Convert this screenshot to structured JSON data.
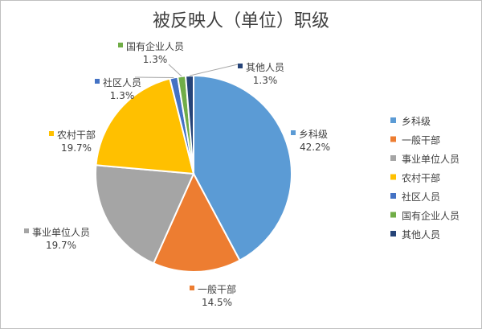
{
  "chart_data": {
    "type": "pie",
    "title": "被反映人（单位）职级",
    "slices": [
      {
        "label": "乡科级",
        "value": 42.2,
        "display": "42.2%",
        "color": "#5B9BD5"
      },
      {
        "label": "一般干部",
        "value": 14.5,
        "display": "14.5%",
        "color": "#ED7D31"
      },
      {
        "label": "事业单位人员",
        "value": 19.7,
        "display": "19.7%",
        "color": "#A5A5A5"
      },
      {
        "label": "农村干部",
        "value": 19.7,
        "display": "19.7%",
        "color": "#FFC000"
      },
      {
        "label": "社区人员",
        "value": 1.3,
        "display": "1.3%",
        "color": "#4472C4"
      },
      {
        "label": "国有企业人员",
        "value": 1.3,
        "display": "1.3%",
        "color": "#70AD47"
      },
      {
        "label": "其他人员",
        "value": 1.3,
        "display": "1.3%",
        "color": "#264478"
      }
    ],
    "legend": [
      "乡科级",
      "一般干部",
      "事业单位人员",
      "农村干部",
      "社区人员",
      "国有企业人员",
      "其他人员"
    ],
    "legend_position": "right"
  }
}
